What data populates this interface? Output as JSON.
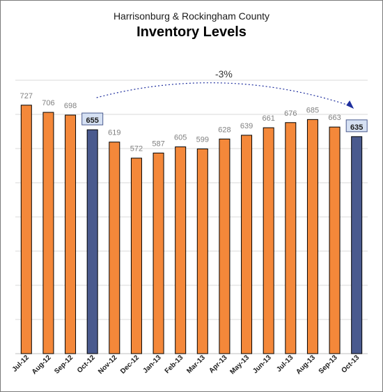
{
  "colors": {
    "bar": "#f4883a",
    "highlight": "#4a5a8e",
    "gridline": "#d9d9d9",
    "value_label": "#808080",
    "arrow": "#1f2f9e",
    "highlight_label_bg": "#d6e1f3",
    "highlight_label_border": "#4a5a8e"
  },
  "chart_data": {
    "type": "bar",
    "subtitle": "Harrisonburg & Rockingham County",
    "title": "Inventory Levels",
    "categories": [
      "Jul-12",
      "Aug-12",
      "Sep-12",
      "Oct-12",
      "Nov-12",
      "Dec-12",
      "Jan-13",
      "Feb-13",
      "Mar-13",
      "Apr-13",
      "May-13",
      "Jun-13",
      "Jul-13",
      "Aug-13",
      "Sep-13",
      "Oct-13"
    ],
    "values": [
      727,
      706,
      698,
      655,
      619,
      572,
      587,
      605,
      599,
      628,
      639,
      661,
      676,
      685,
      663,
      635
    ],
    "highlighted": [
      "Oct-12",
      "Oct-13"
    ],
    "annotation": {
      "text": "-3%",
      "from": "Oct-12",
      "to": "Oct-13"
    },
    "ylim": [
      0,
      800
    ],
    "grid": true,
    "xlabel": "",
    "ylabel": ""
  }
}
